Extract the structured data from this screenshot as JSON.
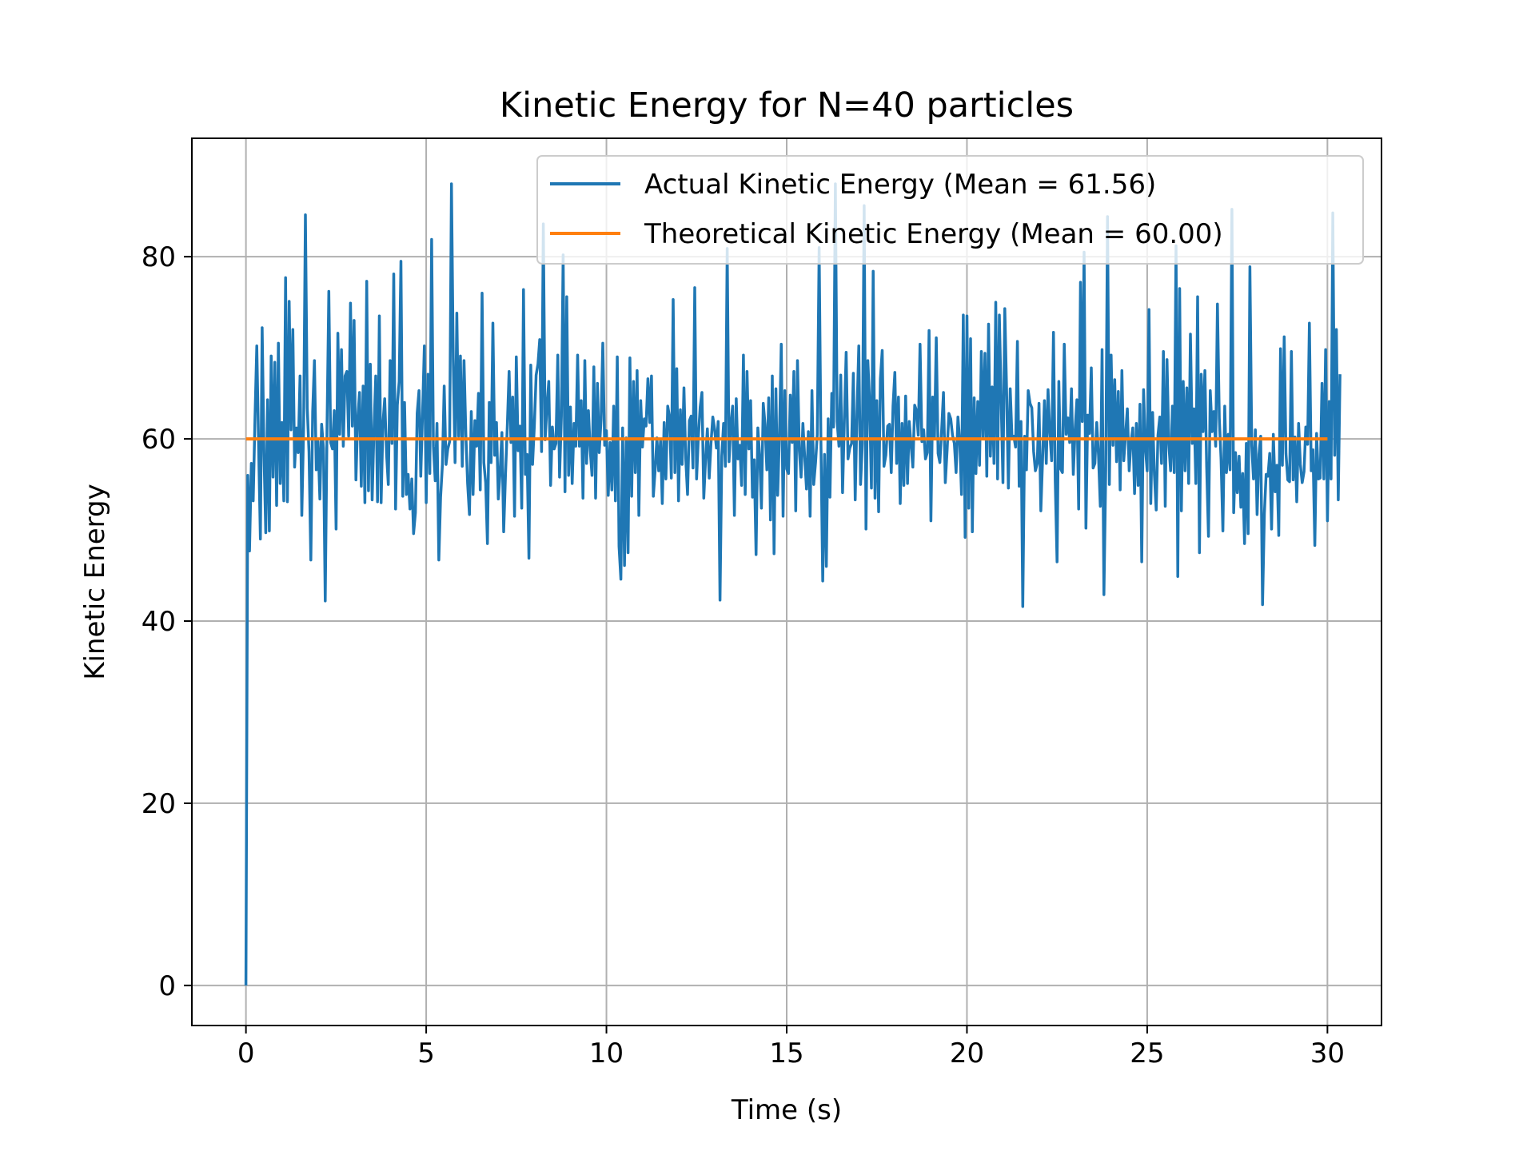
{
  "chart_data": {
    "type": "line",
    "title": "Kinetic Energy for N=40 particles",
    "xlabel": "Time (s)",
    "ylabel": "Kinetic Energy",
    "xlim": [
      -1.5,
      31.5
    ],
    "ylim": [
      -4.4,
      93.0
    ],
    "xticks": [
      0,
      5,
      10,
      15,
      20,
      25,
      30
    ],
    "yticks": [
      0,
      20,
      40,
      60,
      80
    ],
    "grid": true,
    "legend_position": "upper-right",
    "series": [
      {
        "name": "Actual Kinetic Energy (Mean = 61.56)",
        "color": "#1f77b4",
        "x_start": 0,
        "x_step": 0.05,
        "values": [
          0.0,
          56.0,
          47.7,
          57.3,
          53.2,
          62.1,
          70.2,
          59.6,
          49.0,
          72.2,
          58.4,
          49.7,
          64.3,
          49.9,
          69.1,
          55.8,
          68.4,
          52.7,
          70.5,
          55.1,
          61.8,
          53.2,
          77.7,
          53.1,
          75.1,
          61.0,
          72.0,
          56.9,
          61.2,
          58.5,
          66.9,
          51.6,
          61.4,
          84.6,
          63.4,
          58.6,
          46.7,
          63.0,
          68.6,
          56.6,
          59.7,
          53.4,
          61.6,
          59.0,
          42.2,
          61.6,
          76.2,
          59.6,
          58.9,
          63.1,
          50.1,
          71.6,
          60.5,
          69.8,
          59.2,
          66.9,
          67.4,
          60.3,
          74.9,
          61.4,
          73.0,
          55.5,
          62.1,
          65.1,
          54.8,
          65.8,
          53.0,
          77.3,
          54.3,
          68.2,
          53.3,
          60.8,
          66.9,
          53.1,
          73.5,
          53.0,
          61.7,
          64.4,
          58.4,
          55.0,
          68.6,
          59.5,
          78.1,
          52.3,
          63.7,
          66.3,
          79.5,
          53.7,
          64.0,
          53.9,
          56.1,
          52.3,
          55.6,
          49.6,
          51.9,
          62.8,
          65.3,
          55.9,
          63.0,
          70.2,
          53.0,
          67.1,
          56.2,
          81.9,
          59.2,
          55.4,
          61.7,
          46.7,
          53.6,
          57.2,
          65.8,
          57.2,
          58.9,
          59.7,
          88.0,
          68.9,
          57.4,
          73.8,
          60.3,
          69.1,
          57.0,
          68.6,
          60.5,
          55.1,
          51.7,
          63.0,
          53.9,
          62.0,
          59.2,
          65.0,
          54.4,
          76.0,
          57.4,
          55.2,
          48.5,
          64.0,
          57.4,
          72.7,
          58.2,
          61.8,
          53.4,
          56.3,
          60.7,
          49.8,
          56.1,
          61.3,
          67.4,
          59.6,
          64.6,
          51.5,
          69.0,
          58.7,
          61.4,
          52.4,
          76.4,
          56.1,
          58.3,
          46.9,
          68.1,
          57.2,
          61.5,
          67.0,
          68.2,
          70.9,
          58.6,
          83.6,
          59.9,
          63.5,
          66.3,
          54.9,
          61.3,
          58.9,
          59.5,
          69.2,
          55.8,
          62.5,
          80.2,
          54.2,
          75.6,
          56.0,
          63.5,
          55.1,
          61.7,
          59.2,
          69.2,
          59.2,
          64.2,
          53.5,
          68.6,
          57.3,
          63.1,
          58.7,
          56.0,
          67.9,
          53.5,
          66.1,
          58.5,
          62.1,
          70.5,
          59.3,
          60.9,
          53.8,
          59.6,
          54.4,
          63.6,
          53.2,
          69.0,
          48.2,
          44.6,
          61.2,
          46.1,
          60.1,
          47.5,
          68.9,
          53.7,
          66.3,
          56.3,
          67.5,
          51.6,
          64.2,
          59.1,
          62.2,
          61.4,
          66.6,
          61.8,
          66.9,
          53.7,
          56.5,
          60.1,
          56.5,
          59.8,
          52.9,
          61.8,
          55.6,
          63.6,
          62.4,
          55.7,
          75.3,
          56.3,
          67.7,
          53.2,
          63.2,
          57.2,
          65.6,
          57.9,
          53.9,
          62.0,
          62.5,
          56.8,
          76.6,
          55.6,
          60.2,
          63.5,
          65.1,
          53.5,
          57.7,
          61.1,
          55.7,
          59.5,
          62.4,
          61.1,
          59.0,
          61.9,
          42.3,
          58.1,
          61.7,
          57.0,
          80.9,
          57.5,
          61.6,
          63.6,
          51.6,
          64.4,
          57.8,
          59.3,
          54.9,
          69.2,
          53.9,
          67.4,
          58.9,
          64.2,
          53.6,
          57.7,
          47.3,
          61.2,
          58.1,
          52.4,
          63.9,
          61.6,
          56.6,
          64.5,
          51.1,
          66.9,
          47.4,
          65.5,
          53.8,
          60.6,
          70.4,
          51.5,
          65.3,
          56.7,
          56.2,
          64.8,
          59.6,
          67.4,
          52.1,
          68.6,
          58.7,
          55.8,
          61.7,
          58.0,
          54.5,
          60.8,
          51.5,
          65.3,
          55.0,
          57.4,
          60.5,
          81.0,
          59.8,
          44.4,
          58.3,
          46.0,
          62.2,
          53.6,
          65.0,
          61.3,
          88.0,
          61.9,
          59.2,
          67.0,
          54.1,
          61.9,
          69.5,
          57.8,
          59.0,
          59.5,
          67.2,
          53.3,
          62.7,
          70.2,
          55.0,
          59.5,
          85.6,
          50.1,
          68.6,
          64.1,
          54.6,
          78.4,
          53.5,
          64.2,
          52.0,
          66.6,
          69.7,
          57.0,
          58.2,
          61.4,
          61.6,
          56.3,
          63.6,
          67.3,
          57.3,
          64.6,
          52.9,
          61.7,
          54.9,
          64.7,
          55.1,
          61.9,
          59.3,
          56.9,
          63.7,
          63.1,
          60.4,
          70.4,
          59.7,
          61.0,
          57.8,
          58.5,
          71.9,
          51.0,
          64.6,
          60.2,
          71.1,
          58.4,
          57.4,
          61.1,
          65.1,
          55.2,
          58.8,
          62.8,
          62.2,
          60.4,
          59.5,
          56.3,
          62.4,
          59.8,
          53.9,
          73.6,
          49.2,
          73.5,
          52.4,
          71.0,
          49.8,
          64.5,
          56.2,
          64.1,
          57.1,
          69.6,
          60.1,
          69.4,
          55.9,
          72.6,
          58.1,
          65.7,
          57.3,
          75.0,
          55.6,
          73.6,
          64.1,
          55.2,
          74.3,
          65.2,
          54.6,
          65.5,
          60.1,
          60.3,
          59.1,
          70.7,
          54.8,
          61.9,
          41.6,
          60.3,
          56.6,
          65.3,
          63.9,
          63.4,
          58.6,
          56.5,
          57.3,
          63.9,
          52.1,
          57.8,
          64.2,
          57.3,
          65.4,
          60.6,
          57.6,
          71.7,
          55.4,
          46.5,
          66.3,
          56.7,
          56.3,
          70.4,
          60.5,
          62.3,
          59.6,
          65.5,
          56.1,
          60.9,
          64.3,
          52.3,
          77.2,
          61.9,
          80.5,
          50.2,
          62.6,
          60.6,
          67.8,
          56.8,
          57.3,
          61.8,
          58.2,
          52.6,
          69.8,
          42.9,
          56.6,
          84.4,
          55.0,
          69.2,
          59.3,
          66.5,
          57.5,
          65.2,
          54.4,
          67.5,
          57.6,
          60.5,
          63.3,
          56.5,
          59.6,
          61.2,
          54.0,
          61.7,
          54.9,
          63.8,
          46.5,
          65.4,
          59.0,
          56.5,
          74.2,
          52.9,
          62.9,
          56.1,
          52.2,
          60.4,
          62.4,
          57.3,
          69.6,
          52.6,
          68.7,
          59.4,
          56.5,
          63.6,
          56.3,
          81.2,
          44.9,
          76.5,
          52.1,
          66.3,
          56.5,
          65.6,
          55.1,
          71.5,
          59.5,
          63.3,
          55.1,
          75.6,
          47.5,
          67.1,
          60.8,
          67.5,
          57.0,
          49.3,
          65.3,
          60.8,
          63.0,
          59.2,
          74.8,
          62.3,
          57.8,
          49.9,
          63.6,
          56.3,
          60.5,
          56.6,
          85.2,
          51.9,
          58.5,
          54.1,
          58.1,
          52.5,
          56.2,
          48.5,
          59.5,
          49.6,
          78.9,
          59.3,
          55.6,
          61.0,
          51.7,
          58.3,
          60.3,
          41.8,
          51.8,
          56.1,
          55.9,
          58.4,
          50.1,
          60.5,
          54.2,
          57.1,
          49.4,
          69.9,
          57.1,
          71.2,
          58.4,
          55.5,
          55.3,
          69.6,
          55.5,
          60.2,
          53.1,
          61.7,
          57.2,
          55.2,
          56.4,
          61.3,
          59.4,
          72.7,
          56.5,
          58.8,
          48.3,
          60.6,
          55.6,
          55.7,
          66.1,
          55.6,
          69.8,
          51.0,
          64.1,
          55.6,
          84.8,
          58.2,
          72.0,
          53.3,
          67.1
        ]
      },
      {
        "name": "Theoretical Kinetic Energy (Mean = 60.00)",
        "color": "#ff7f0e",
        "x": [
          0,
          30
        ],
        "values": [
          60.0,
          60.0
        ]
      }
    ]
  }
}
